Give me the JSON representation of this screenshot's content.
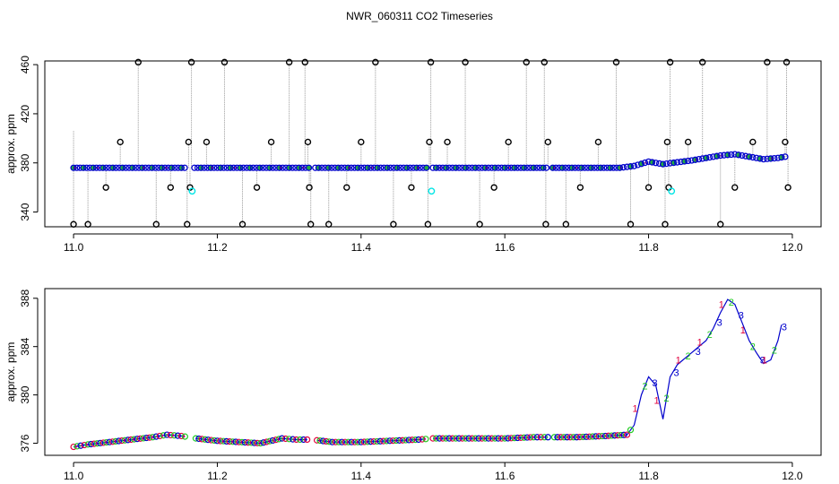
{
  "title": "NWR_060311  CO2 Timeseries",
  "colors": {
    "spike_line": "#9a9a9a",
    "outlier_marker": "#000000",
    "flagged_marker": "#00e5e5",
    "main_series": "#0000cc",
    "marker_1": "#e0003c",
    "marker_2": "#22cc22",
    "marker_3": "#0000cc",
    "point_fill": "#22aa44"
  },
  "chart_data": [
    {
      "type": "scatter",
      "panel": "top",
      "ylabel": "approx. ppm",
      "xlabel": "",
      "xlim": [
        10.96,
        12.04
      ],
      "ylim": [
        328,
        463
      ],
      "xticks": [
        "11.0",
        "11.2",
        "11.4",
        "11.6",
        "11.8",
        "12.0"
      ],
      "yticks": [
        "340",
        "380",
        "420",
        "460"
      ],
      "gaps": [
        [
          11.158,
          11.168
        ],
        [
          11.328,
          11.335
        ],
        [
          11.495,
          11.5
        ],
        [
          11.66,
          11.665
        ]
      ],
      "series": [
        {
          "type": "line",
          "x": [
            11.0,
            11.2,
            11.4,
            11.6,
            11.76,
            11.78,
            11.8,
            11.82,
            11.84,
            11.86,
            11.88,
            11.9,
            11.92,
            11.94,
            11.96,
            11.98,
            11.99
          ],
          "values": [
            376,
            376,
            376,
            376,
            376,
            377.5,
            381,
            379,
            380.5,
            382,
            384,
            386,
            387,
            385,
            383,
            384,
            385
          ]
        }
      ],
      "outliers": {
        "x": [
          11.0,
          11.02,
          11.045,
          11.065,
          11.09,
          11.115,
          11.135,
          11.158,
          11.16,
          11.162,
          11.164,
          11.185,
          11.21,
          11.235,
          11.255,
          11.275,
          11.3,
          11.322,
          11.326,
          11.328,
          11.33,
          11.355,
          11.38,
          11.4,
          11.42,
          11.445,
          11.47,
          11.493,
          11.495,
          11.497,
          11.52,
          11.545,
          11.565,
          11.585,
          11.605,
          11.63,
          11.655,
          11.657,
          11.66,
          11.685,
          11.705,
          11.73,
          11.755,
          11.775,
          11.8,
          11.823,
          11.826,
          11.828,
          11.83,
          11.855,
          11.875,
          11.9,
          11.92,
          11.945,
          11.965,
          11.99,
          11.992,
          11.994
        ],
        "values": [
          330,
          330,
          360,
          397,
          462,
          330,
          360,
          330,
          397,
          360,
          462,
          397,
          462,
          330,
          360,
          397,
          462,
          462,
          397,
          360,
          330,
          330,
          360,
          397,
          462,
          330,
          360,
          330,
          397,
          462,
          397,
          462,
          330,
          360,
          397,
          462,
          462,
          330,
          397,
          330,
          360,
          397,
          462,
          330,
          360,
          330,
          397,
          360,
          462,
          397,
          462,
          330,
          360,
          397,
          462,
          397,
          462,
          360
        ],
        "flagged_x": [
          11.165,
          11.498,
          11.832
        ],
        "flagged_values": [
          357,
          357,
          357
        ]
      }
    },
    {
      "type": "line",
      "panel": "bottom",
      "ylabel": "approx. ppm",
      "xlabel": "",
      "xlim": [
        10.96,
        12.04
      ],
      "ylim": [
        375.0,
        388.8
      ],
      "xticks": [
        "11.0",
        "11.2",
        "11.4",
        "11.6",
        "11.8",
        "12.0"
      ],
      "yticks": [
        "376",
        "380",
        "384",
        "388"
      ],
      "gaps": [
        [
          11.158,
          11.168
        ],
        [
          11.328,
          11.335
        ],
        [
          11.495,
          11.5
        ],
        [
          11.66,
          11.665
        ]
      ],
      "markers": [
        "1",
        "2",
        "3"
      ],
      "series": [
        {
          "name": "",
          "x": [
            11.0,
            11.02,
            11.05,
            11.08,
            11.11,
            11.13,
            11.15,
            11.17,
            11.2,
            11.23,
            11.26,
            11.29,
            11.31,
            11.33,
            11.36,
            11.4,
            11.44,
            11.48,
            11.5,
            11.55,
            11.6,
            11.64,
            11.66,
            11.7,
            11.74,
            11.77,
            11.78,
            11.79,
            11.8,
            11.81,
            11.82,
            11.83,
            11.84,
            11.85,
            11.86,
            11.87,
            11.88,
            11.89,
            11.9,
            11.91,
            11.92,
            11.93,
            11.94,
            11.95,
            11.96,
            11.97,
            11.98,
            11.985
          ],
          "values": [
            375.7,
            375.9,
            376.1,
            376.3,
            376.5,
            376.7,
            376.6,
            376.4,
            376.2,
            376.1,
            376.0,
            376.4,
            376.3,
            376.3,
            376.1,
            376.1,
            376.2,
            376.3,
            376.4,
            376.4,
            376.4,
            376.5,
            376.5,
            376.5,
            376.6,
            376.7,
            377.5,
            380.0,
            381.5,
            380.8,
            378.0,
            381.5,
            382.5,
            383.0,
            383.5,
            384.0,
            384.5,
            385.5,
            386.8,
            387.9,
            387.5,
            386.0,
            384.5,
            383.5,
            382.6,
            382.9,
            384.5,
            385.8
          ]
        }
      ]
    }
  ]
}
